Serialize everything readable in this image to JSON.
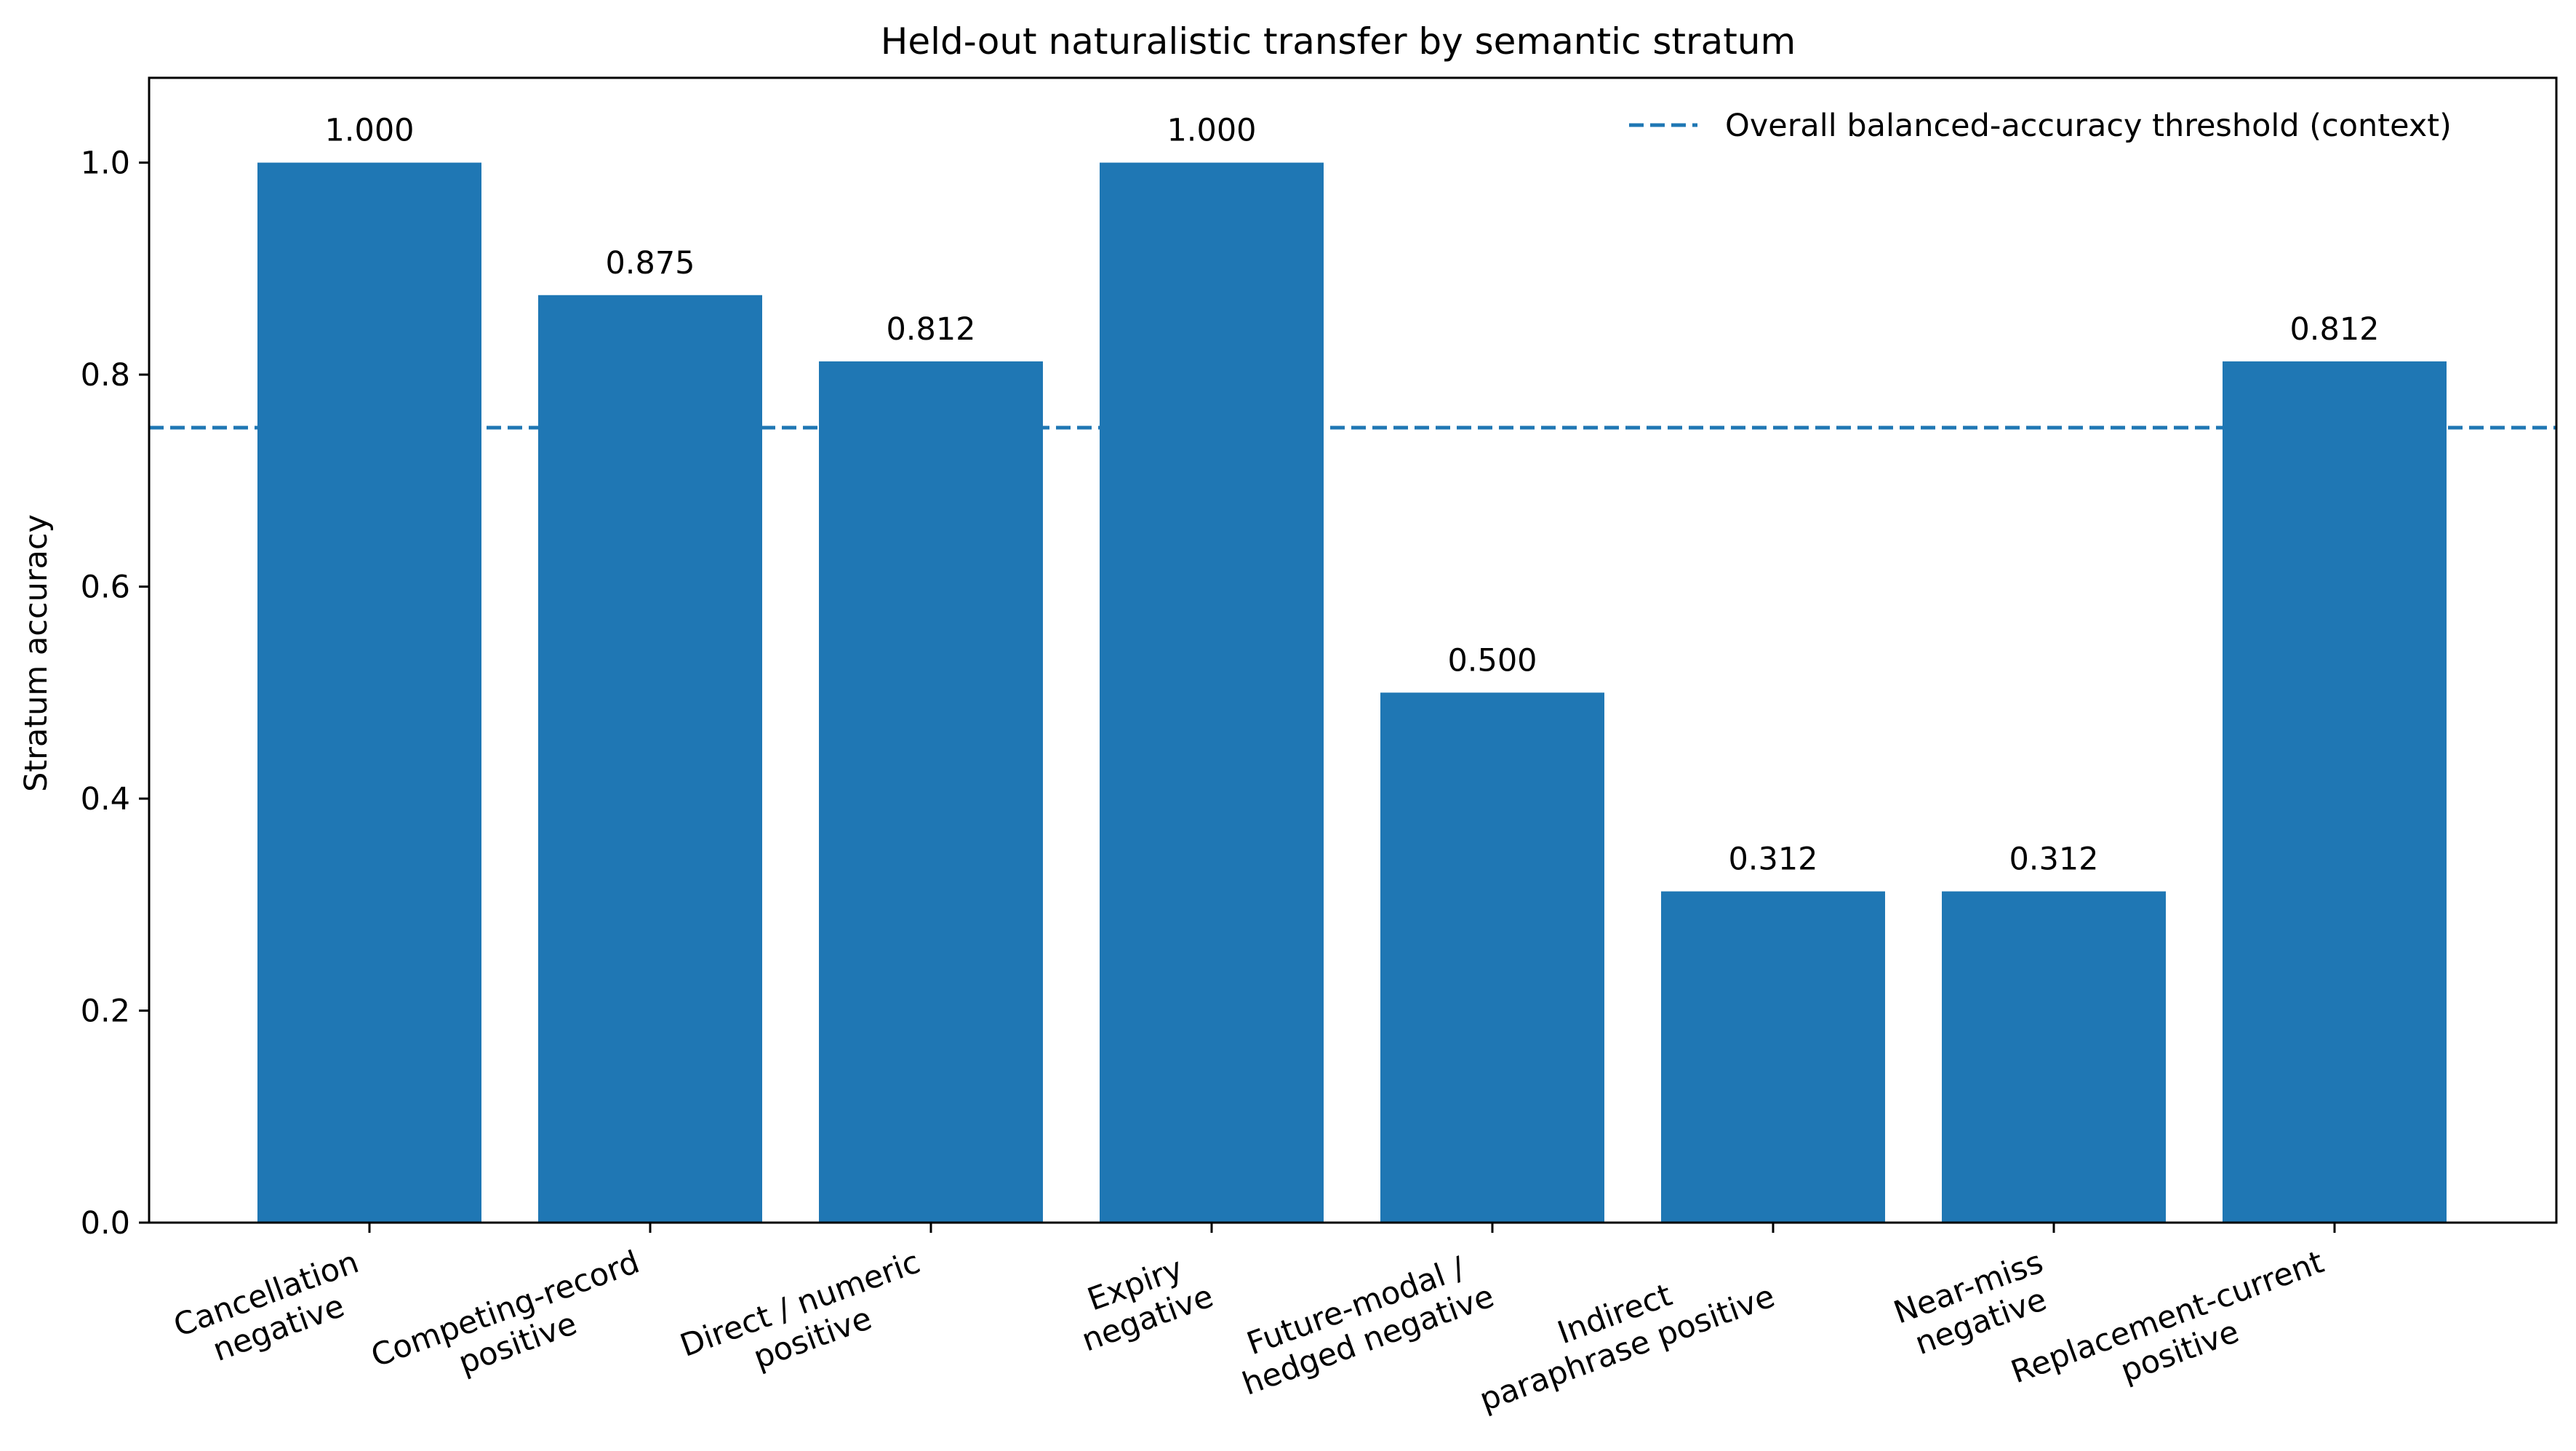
{
  "chart_data": {
    "type": "bar",
    "title": "Held-out naturalistic transfer by semantic stratum",
    "xlabel": "",
    "ylabel": "Stratum accuracy",
    "ylim": [
      0,
      1.08
    ],
    "yticks": [
      "0.0",
      "0.2",
      "0.4",
      "0.6",
      "0.8",
      "1.0"
    ],
    "categories": [
      [
        "Cancellation",
        "negative"
      ],
      [
        "Competing-record",
        "positive"
      ],
      [
        "Direct / numeric",
        "positive"
      ],
      [
        "Expiry",
        "negative"
      ],
      [
        "Future-modal /",
        "hedged negative"
      ],
      [
        "Indirect",
        "paraphrase positive"
      ],
      [
        "Near-miss",
        "negative"
      ],
      [
        "Replacement-current",
        "positive"
      ]
    ],
    "values": [
      1.0,
      0.875,
      0.8125,
      1.0,
      0.5,
      0.3125,
      0.3125,
      0.8125
    ],
    "value_labels": [
      "1.000",
      "0.875",
      "0.812",
      "1.000",
      "0.500",
      "0.312",
      "0.312",
      "0.812"
    ],
    "threshold": {
      "value": 0.75,
      "label": "Overall balanced-accuracy threshold (context)",
      "style": "dashed"
    },
    "legend_position": "top-right",
    "grid": false,
    "colors": {
      "bar": "#1f77b4",
      "threshold": "#1f77b4",
      "axes": "#000000"
    }
  }
}
